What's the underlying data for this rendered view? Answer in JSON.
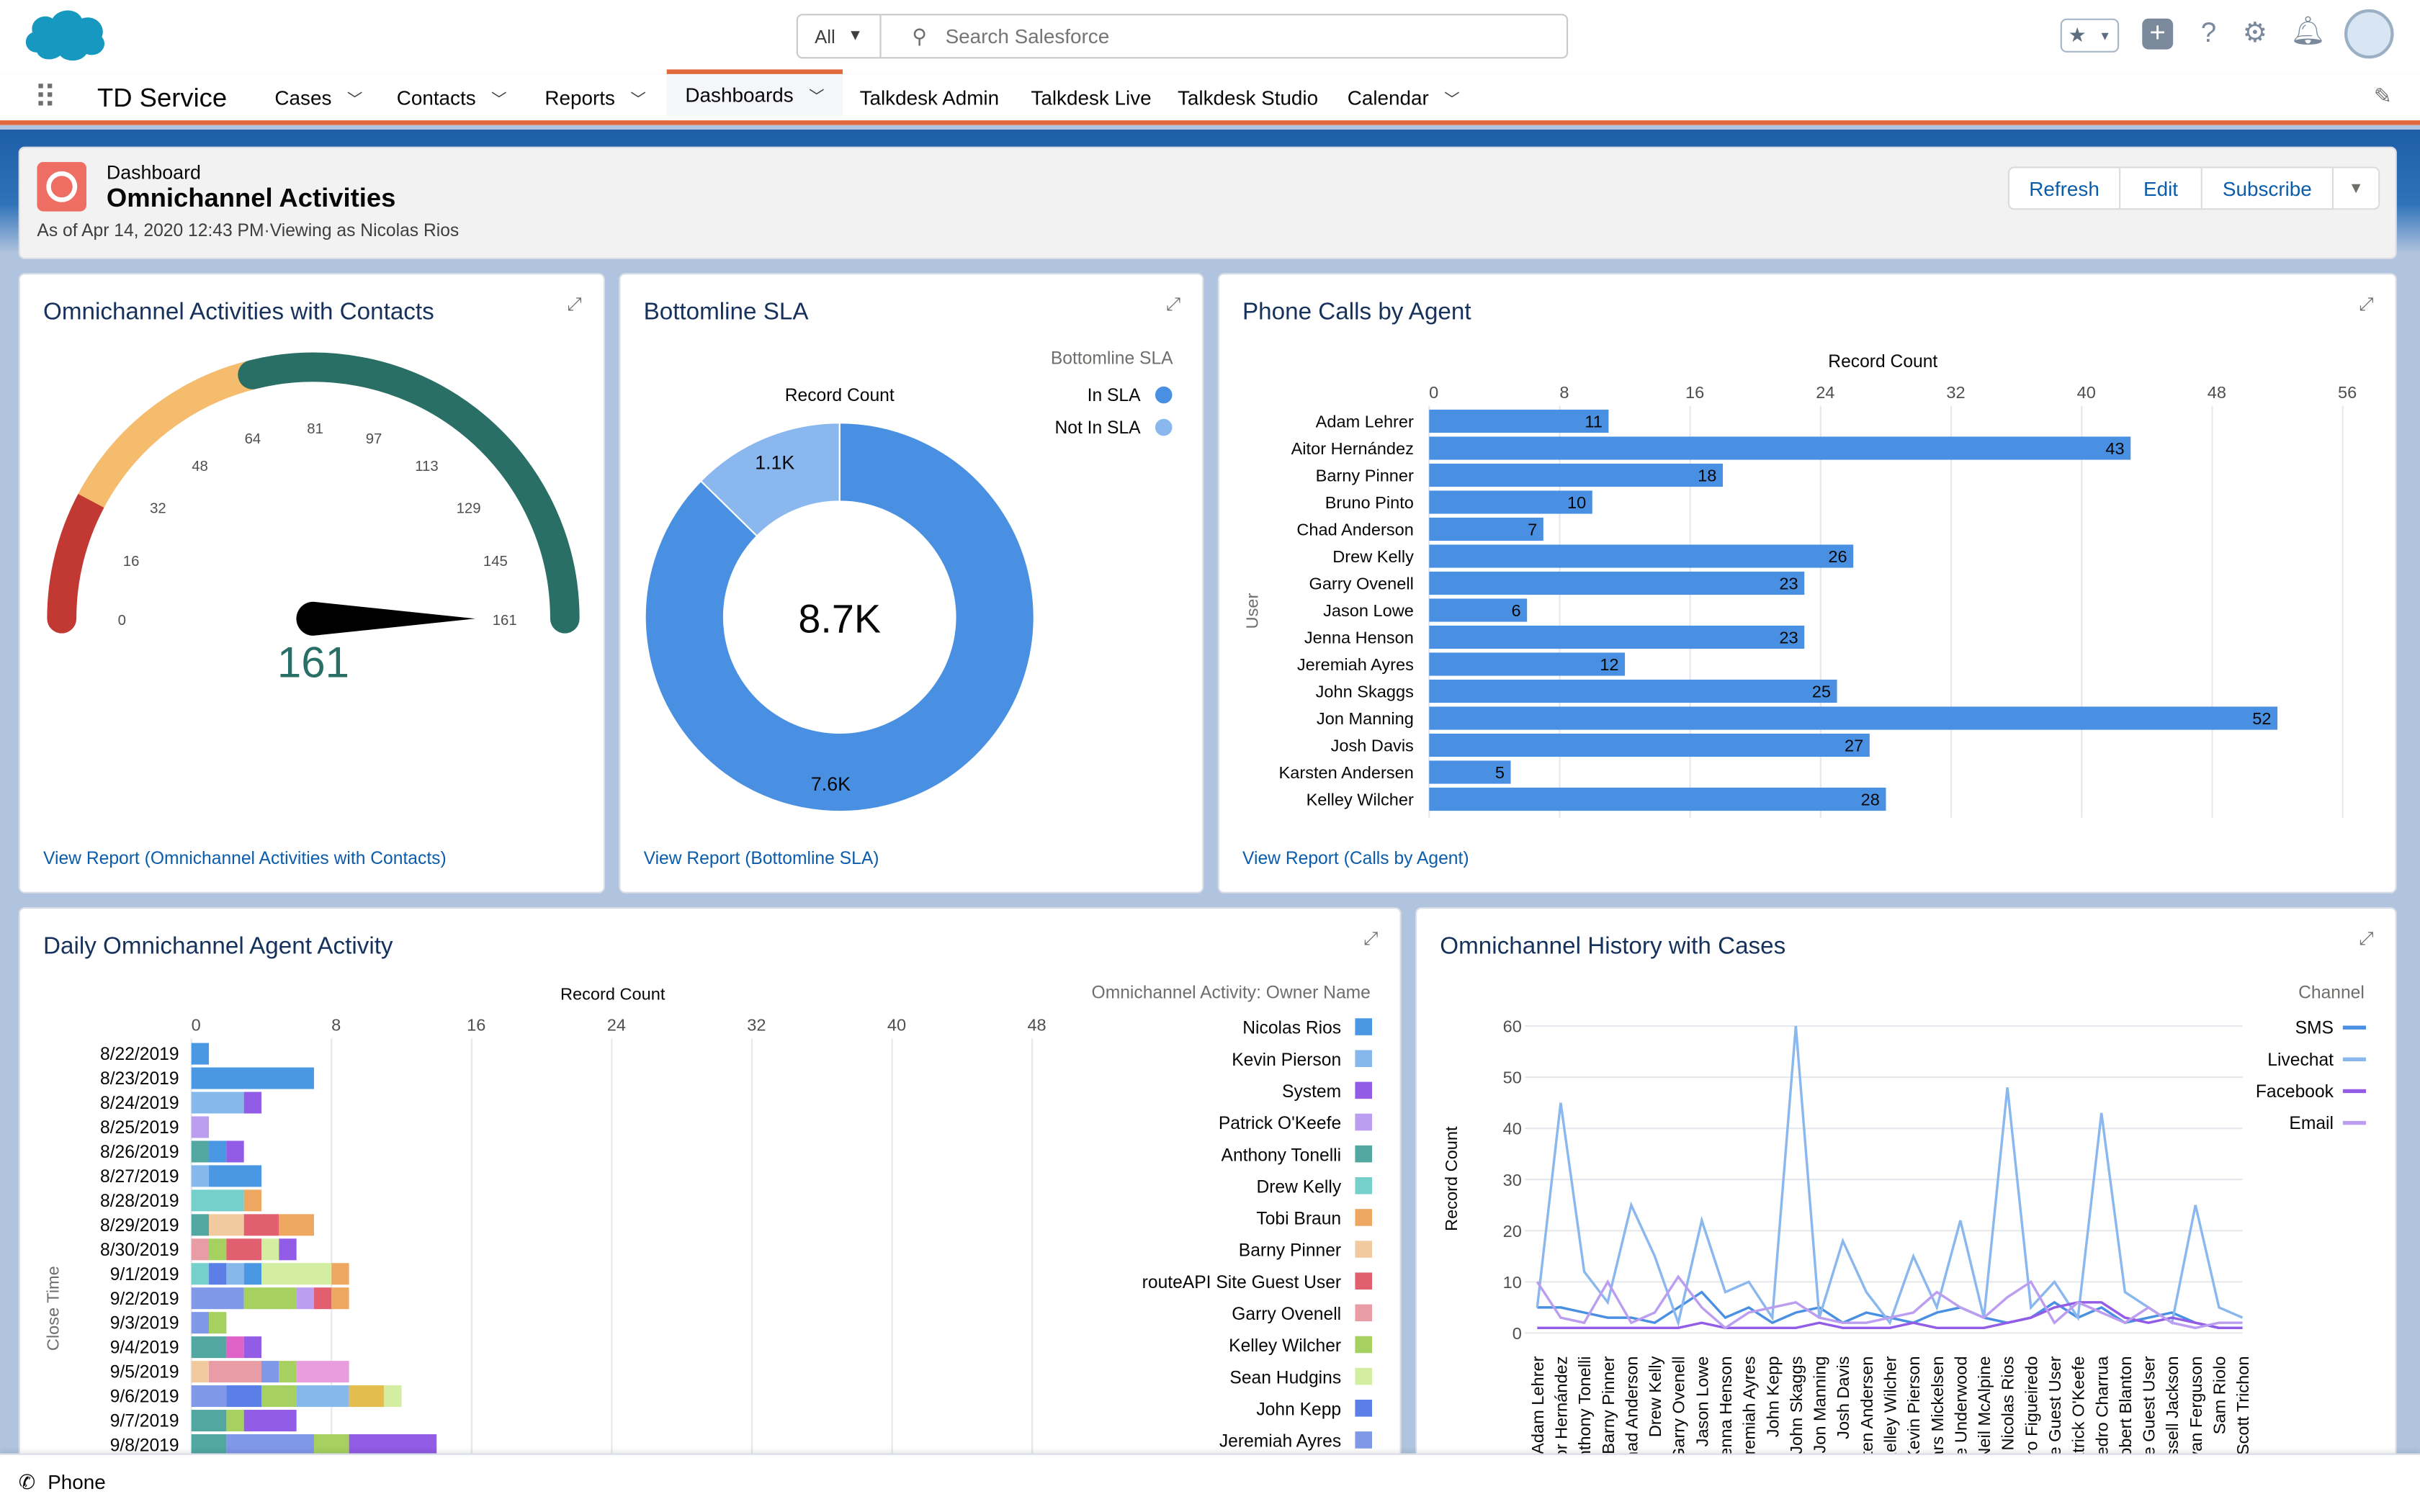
{
  "app": {
    "name": "TD Service",
    "search_scope": "All",
    "search_placeholder": "Search Salesforce"
  },
  "nav": {
    "tabs": [
      {
        "label": "Cases",
        "dropdown": true
      },
      {
        "label": "Contacts",
        "dropdown": true
      },
      {
        "label": "Reports",
        "dropdown": true
      },
      {
        "label": "Dashboards",
        "dropdown": true,
        "active": true
      },
      {
        "label": "Talkdesk Admin"
      },
      {
        "label": "Talkdesk Live"
      },
      {
        "label": "Talkdesk Studio"
      },
      {
        "label": "Calendar",
        "dropdown": true
      }
    ]
  },
  "header_icons": [
    "favorites-star-icon",
    "add-icon",
    "help-icon",
    "setup-gear-icon",
    "notifications-bell-icon",
    "user-avatar"
  ],
  "dashboard": {
    "type_label": "Dashboard",
    "title": "Omnichannel Activities",
    "subtitle": "As of Apr 14, 2020 12:43 PM·Viewing as Nicolas Rios",
    "buttons": {
      "refresh": "Refresh",
      "edit": "Edit",
      "subscribe": "Subscribe"
    }
  },
  "utility_bar": {
    "phone": "Phone"
  },
  "colors": {
    "brand": "#1589ee",
    "accent_orange": "#e06a3b",
    "link": "#0b5cab"
  },
  "chart_data": [
    {
      "id": "gauge",
      "type": "gauge",
      "title": "Omnichannel Activities with Contacts",
      "value": 161,
      "min": 0,
      "max": 161,
      "ticks": [
        0,
        16,
        32,
        48,
        64,
        81,
        97,
        113,
        129,
        145,
        161
      ],
      "bands": [
        {
          "to": 25,
          "color": "#c23934"
        },
        {
          "to": 68,
          "color": "#f4bc6c"
        },
        {
          "to": 161,
          "color": "#2a6f66"
        }
      ],
      "value_label": "161",
      "link": "View Report (Omnichannel Activities with Contacts)"
    },
    {
      "id": "donut",
      "type": "pie",
      "title": "Bottomline SLA",
      "axis_label": "Record Count",
      "legend_title": "Bottomline SLA",
      "legend_position": "top-right",
      "total_label": "8.7K",
      "slices": [
        {
          "name": "In SLA",
          "value": 7.6,
          "label": "7.6K",
          "color": "#4a90e2"
        },
        {
          "name": "Not In SLA",
          "value": 1.1,
          "label": "1.1K",
          "color": "#8ab8ee"
        }
      ],
      "link": "View Report (Bottomline SLA)"
    },
    {
      "id": "calls",
      "type": "bar",
      "orientation": "horizontal",
      "title": "Phone Calls by Agent",
      "xlabel": "Record Count",
      "ylabel": "User",
      "xlim": [
        0,
        56
      ],
      "xticks": [
        0,
        8,
        16,
        24,
        32,
        40,
        48,
        56
      ],
      "color": "#4a90e2",
      "grid": true,
      "categories": [
        "Adam Lehrer",
        "Aitor Hernández",
        "Barny Pinner",
        "Bruno Pinto",
        "Chad Anderson",
        "Drew Kelly",
        "Garry Ovenell",
        "Jason Lowe",
        "Jenna Henson",
        "Jeremiah Ayres",
        "John Skaggs",
        "Jon Manning",
        "Josh Davis",
        "Karsten Andersen",
        "Kelley Wilcher"
      ],
      "values": [
        11,
        43,
        18,
        10,
        7,
        26,
        23,
        6,
        23,
        12,
        25,
        52,
        27,
        5,
        28
      ],
      "link": "View Report (Calls by Agent)"
    },
    {
      "id": "daily",
      "type": "bar",
      "orientation": "horizontal",
      "stacked": true,
      "title": "Daily Omnichannel Agent Activity",
      "xlabel": "Record Count",
      "ylabel": "Close Time",
      "xticks": [
        0,
        8,
        16,
        24,
        32,
        40,
        48
      ],
      "legend_title": "Omnichannel Activity: Owner Name",
      "legend_position": "right",
      "grid": true,
      "legend": [
        {
          "name": "Nicolas Rios",
          "color": "#4a98e4"
        },
        {
          "name": "Kevin Pierson",
          "color": "#86b8ec"
        },
        {
          "name": "System",
          "color": "#925ce6"
        },
        {
          "name": "Patrick O'Keefe",
          "color": "#bc9ef0"
        },
        {
          "name": "Anthony Tonelli",
          "color": "#52a7a1"
        },
        {
          "name": "Drew Kelly",
          "color": "#75d0cc"
        },
        {
          "name": "Tobi Braun",
          "color": "#eda761"
        },
        {
          "name": "Barny Pinner",
          "color": "#f2caa0"
        },
        {
          "name": "routeAPI Site Guest User",
          "color": "#e15f6e"
        },
        {
          "name": "Garry Ovenell",
          "color": "#e89ca5"
        },
        {
          "name": "Kelley Wilcher",
          "color": "#a6d161"
        },
        {
          "name": "Sean Hudgins",
          "color": "#d3eea0"
        },
        {
          "name": "John Kepp",
          "color": "#5b7fe6"
        },
        {
          "name": "Jeremiah Ayres",
          "color": "#7f98e8"
        }
      ],
      "rows": [
        {
          "date": "8/22/2019",
          "segments": [
            [
              "Nicolas Rios",
              1
            ]
          ]
        },
        {
          "date": "8/23/2019",
          "segments": [
            [
              "Nicolas Rios",
              7
            ]
          ]
        },
        {
          "date": "8/24/2019",
          "segments": [
            [
              "Kevin Pierson",
              3
            ],
            [
              "System",
              1
            ]
          ]
        },
        {
          "date": "8/25/2019",
          "segments": [
            [
              "Patrick O'Keefe",
              1
            ]
          ]
        },
        {
          "date": "8/26/2019",
          "segments": [
            [
              "Anthony Tonelli",
              1
            ],
            [
              "Nicolas Rios",
              1
            ],
            [
              "System",
              1
            ]
          ]
        },
        {
          "date": "8/27/2019",
          "segments": [
            [
              "Kevin Pierson",
              1
            ],
            [
              "Nicolas Rios",
              3
            ]
          ]
        },
        {
          "date": "8/28/2019",
          "segments": [
            [
              "Drew Kelly",
              3
            ],
            [
              "Tobi Braun",
              1
            ]
          ]
        },
        {
          "date": "8/29/2019",
          "segments": [
            [
              "Anthony Tonelli",
              1
            ],
            [
              "Barny Pinner",
              2
            ],
            [
              "routeAPI Site Guest User",
              2
            ],
            [
              "Tobi Braun",
              2
            ]
          ]
        },
        {
          "date": "8/30/2019",
          "segments": [
            [
              "Garry Ovenell",
              1
            ],
            [
              "Kelley Wilcher",
              1
            ],
            [
              "routeAPI Site Guest User",
              2
            ],
            [
              "Sean Hudgins",
              1
            ],
            [
              "System",
              1
            ]
          ]
        },
        {
          "date": "9/1/2019",
          "segments": [
            [
              "Drew Kelly",
              1
            ],
            [
              "John Kepp",
              1
            ],
            [
              "Kevin Pierson",
              1
            ],
            [
              "Nicolas Rios",
              1
            ],
            [
              "Sean Hudgins",
              4
            ],
            [
              "Tobi Braun",
              1
            ]
          ]
        },
        {
          "date": "9/2/2019",
          "segments": [
            [
              "Jeremiah Ayres",
              3
            ],
            [
              "Kelley Wilcher",
              3
            ],
            [
              "Patrick O'Keefe",
              1
            ],
            [
              "routeAPI Site Guest User",
              1
            ],
            [
              "Tobi Braun",
              1
            ]
          ]
        },
        {
          "date": "9/3/2019",
          "segments": [
            [
              "Jeremiah Ayres",
              1
            ],
            [
              "Kelley Wilcher",
              1
            ]
          ]
        },
        {
          "date": "9/4/2019",
          "segments": [
            [
              "Anthony Tonelli",
              2
            ],
            [
              "#de62c8",
              1
            ],
            [
              "System",
              1
            ]
          ]
        },
        {
          "date": "9/5/2019",
          "segments": [
            [
              "Barny Pinner",
              1
            ],
            [
              "Garry Ovenell",
              3
            ],
            [
              "Jeremiah Ayres",
              1
            ],
            [
              "Kelley Wilcher",
              1
            ],
            [
              "#e89ddc",
              3
            ]
          ]
        },
        {
          "date": "9/6/2019",
          "segments": [
            [
              "Jeremiah Ayres",
              2
            ],
            [
              "John Kepp",
              2
            ],
            [
              "Kelley Wilcher",
              2
            ],
            [
              "Kevin Pierson",
              3
            ],
            [
              "#e4bd4f",
              2
            ],
            [
              "Sean Hudgins",
              1
            ]
          ]
        },
        {
          "date": "9/7/2019",
          "segments": [
            [
              "Anthony Tonelli",
              2
            ],
            [
              "Kelley Wilcher",
              1
            ],
            [
              "System",
              3
            ]
          ]
        },
        {
          "date": "9/8/2019",
          "segments": [
            [
              "Anthony Tonelli",
              2
            ],
            [
              "Jeremiah Ayres",
              5
            ],
            [
              "Kelley Wilcher",
              2
            ],
            [
              "System",
              5
            ]
          ]
        }
      ]
    },
    {
      "id": "history",
      "type": "line",
      "title": "Omnichannel History with Cases",
      "ylabel": "Record Count",
      "ylim": [
        0,
        60
      ],
      "yticks": [
        0,
        10,
        20,
        30,
        40,
        50,
        60
      ],
      "legend_title": "Channel",
      "legend_position": "top-right",
      "grid": true,
      "categories": [
        "Adam Lehrer",
        "Aitor Hernández",
        "Anthony Tonelli",
        "Barny Pinner",
        "Chad Anderson",
        "Drew Kelly",
        "Garry Ovenell",
        "Jason Lowe",
        "Jenna Henson",
        "Jeremiah Ayres",
        "John Kepp",
        "John Skaggs",
        "Jon Manning",
        "Josh Davis",
        "Karsten Andersen",
        "Kelley Wilcher",
        "Kevin Pierson",
        "Lars Mickelsen",
        "Luke Underwood",
        "Neil McAlpine",
        "Nicolas Rios",
        "Pedro Figueiredo",
        "Site Guest User",
        "Patrick O'Keefe",
        "Pedro Charrua",
        "Robert Blanton",
        "Site Guest User",
        "Russell Jackson",
        "Ryan Ferguson",
        "Sam Riolo",
        "Scott Trichon"
      ],
      "series": [
        {
          "name": "SMS",
          "color": "#4a90e2",
          "values": [
            5,
            5,
            4,
            3,
            3,
            2,
            5,
            8,
            3,
            5,
            2,
            4,
            5,
            2,
            4,
            3,
            2,
            4,
            5,
            3,
            2,
            3,
            6,
            3,
            5,
            2,
            3,
            4,
            2,
            1,
            1
          ]
        },
        {
          "name": "Livechat",
          "color": "#8ab8ee",
          "values": [
            5,
            45,
            12,
            6,
            25,
            15,
            2,
            22,
            8,
            10,
            3,
            60,
            3,
            18,
            8,
            2,
            15,
            5,
            22,
            3,
            48,
            5,
            10,
            3,
            43,
            8,
            5,
            2,
            25,
            5,
            3
          ]
        },
        {
          "name": "Facebook",
          "color": "#925ce6",
          "values": [
            1,
            1,
            1,
            1,
            1,
            1,
            1,
            2,
            1,
            1,
            1,
            1,
            2,
            1,
            1,
            1,
            2,
            1,
            1,
            1,
            2,
            3,
            5,
            6,
            6,
            3,
            2,
            3,
            2,
            1,
            1
          ]
        },
        {
          "name": "Email",
          "color": "#bc9ef0",
          "values": [
            10,
            3,
            2,
            10,
            2,
            4,
            11,
            5,
            1,
            4,
            5,
            6,
            3,
            2,
            2,
            3,
            4,
            8,
            5,
            3,
            7,
            10,
            2,
            6,
            4,
            2,
            5,
            2,
            1,
            2,
            2
          ]
        }
      ]
    }
  ]
}
